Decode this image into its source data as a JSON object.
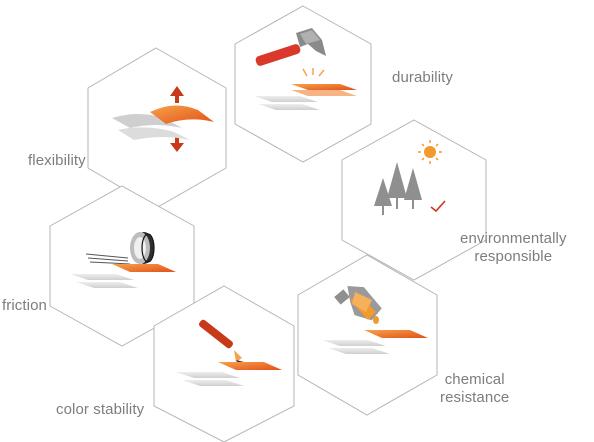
{
  "colors": {
    "hex_stroke": "#b5b5b5",
    "orange": "#f0641e",
    "orange_light": "#f7a24a",
    "red": "#c8391a",
    "gray_tile": "#d8d8d8",
    "gray_dark": "#8f8f8f",
    "sun": "#f29a2e"
  },
  "labels": {
    "durability": "durability",
    "flexibility": "flexibility",
    "environmental": [
      "environmentally",
      "responsible"
    ],
    "friction": "friction",
    "chemical": [
      "chemical",
      "resistance"
    ],
    "color_stability": "color stability"
  },
  "icons": [
    "hammer-icon",
    "flex-arrows-icon",
    "trees-sun-icon",
    "tire-icon",
    "flask-icon",
    "pen-icon"
  ]
}
